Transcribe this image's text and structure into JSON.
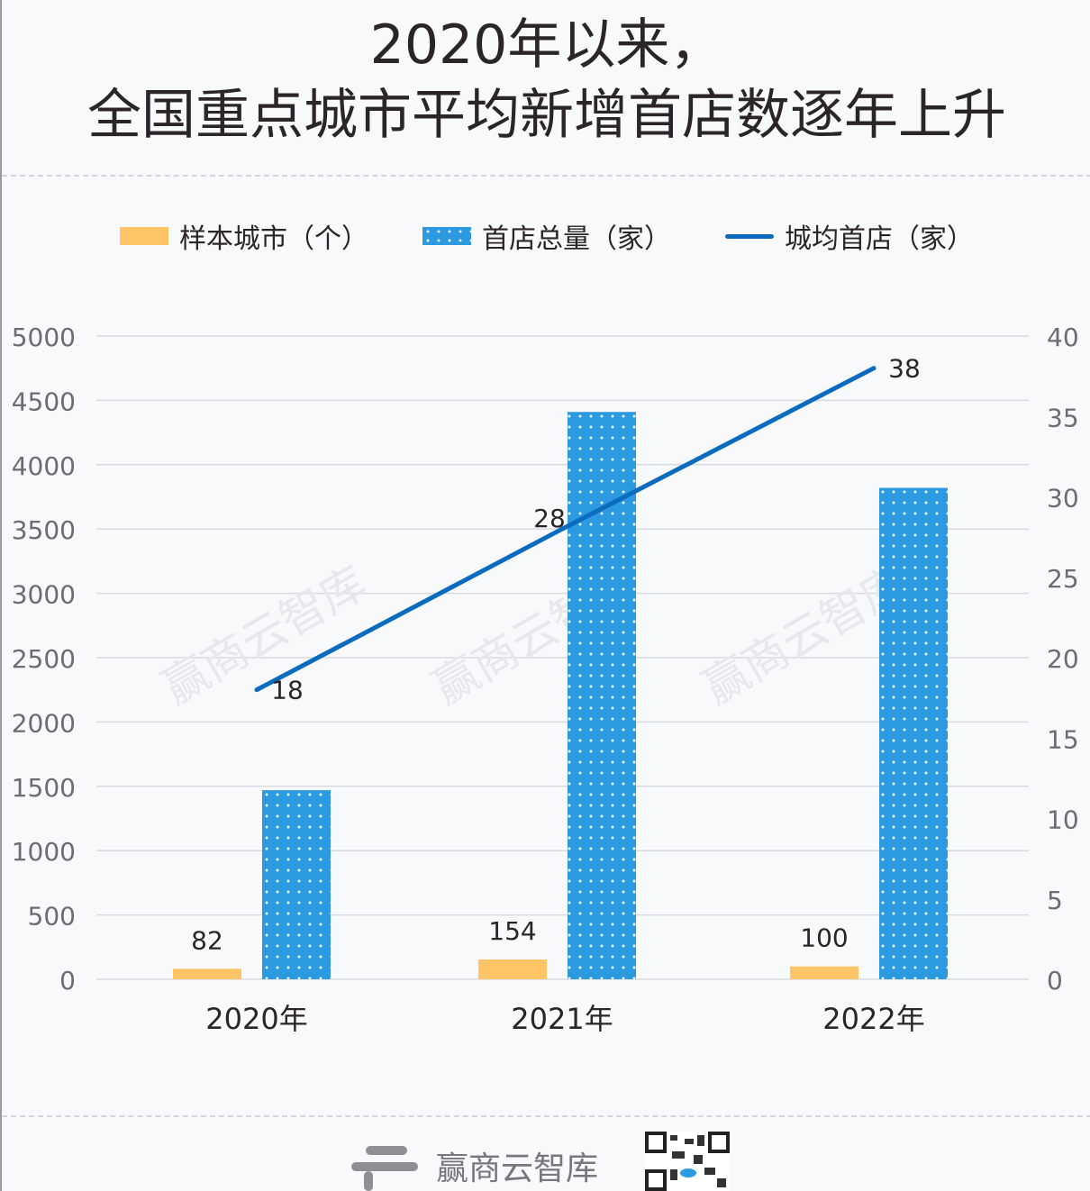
{
  "title_line1": "2020年以来，",
  "title_line2": "全国重点城市平均新增首店数逐年上升",
  "watermark": "赢商云智库",
  "footer": {
    "brand": "赢商云智库",
    "qr_icon": "qr-code-icon"
  },
  "colors": {
    "sample": "#ffc466",
    "total": "#2b9ae0",
    "avg": "#0b6cbf"
  },
  "chart_data": {
    "type": "bar+line",
    "categories": [
      "2020年",
      "2021年",
      "2022年"
    ],
    "series": [
      {
        "name": "样本城市（个）",
        "type": "bar",
        "axis": "left",
        "values": [
          82,
          154,
          100
        ],
        "labels": [
          "82",
          "154",
          "100"
        ]
      },
      {
        "name": "首店总量（家）",
        "type": "bar",
        "axis": "left",
        "values": [
          1470,
          4410,
          3820
        ]
      },
      {
        "name": "城均首店（家）",
        "type": "line",
        "axis": "right",
        "values": [
          18,
          28,
          38
        ],
        "labels": [
          "18",
          "28",
          "38"
        ]
      }
    ],
    "left_axis": {
      "ylim": [
        0,
        5000
      ],
      "ticks": [
        "0",
        "500",
        "1000",
        "1500",
        "2000",
        "2500",
        "3000",
        "3500",
        "4000",
        "4500",
        "5000"
      ]
    },
    "right_axis": {
      "ylim": [
        0,
        40
      ],
      "ticks": [
        "0",
        "5",
        "10",
        "15",
        "20",
        "25",
        "30",
        "35",
        "40"
      ]
    },
    "grid": true,
    "legend_position": "top"
  }
}
